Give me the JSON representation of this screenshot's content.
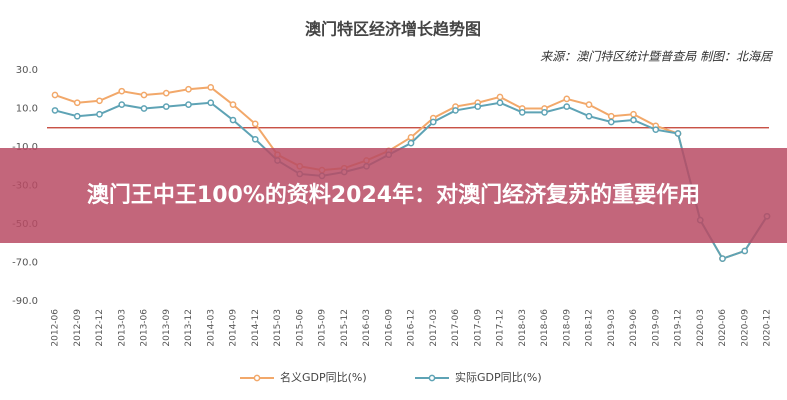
{
  "chart_data": {
    "type": "line",
    "title": "澳门特区经济增长趋势图",
    "subtitle": "来源：澳门特区统计暨普查局 制图：北海居",
    "categories": [
      "2012-06",
      "2012-09",
      "2012-12",
      "2013-03",
      "2013-06",
      "2013-09",
      "2013-12",
      "2014-03",
      "2014-09",
      "2014-12",
      "2015-03",
      "2015-06",
      "2015-09",
      "2015-12",
      "2016-03",
      "2016-09",
      "2016-12",
      "2017-03",
      "2017-06",
      "2017-09",
      "2017-12",
      "2018-03",
      "2018-06",
      "2018-09",
      "2018-12",
      "2019-03",
      "2019-06",
      "2019-09",
      "2019-12",
      "2020-03",
      "2020-06",
      "2020-09",
      "2020-12"
    ],
    "series": [
      {
        "name": "名义GDP同比(%)",
        "color": "#f2a86a",
        "values": [
          17,
          13,
          14,
          19,
          17,
          18,
          20,
          21,
          12,
          2,
          -14,
          -20,
          -22,
          -21,
          -17,
          -12,
          -5,
          5,
          11,
          13,
          16,
          10,
          10,
          15,
          12,
          6,
          7,
          1,
          -3,
          -48,
          -68,
          -64,
          -46
        ]
      },
      {
        "name": "实际GDP同比(%)",
        "color": "#5ea3b5",
        "values": [
          9,
          6,
          7,
          12,
          10,
          11,
          12,
          13,
          4,
          -6,
          -17,
          -24,
          -25,
          -23,
          -20,
          -14,
          -8,
          3,
          9,
          11,
          13,
          8,
          8,
          11,
          6,
          3,
          4,
          -1,
          -3,
          -48,
          -68,
          -64,
          -46
        ]
      }
    ],
    "ylim": [
      -90,
      30
    ],
    "yticks": [
      {
        "value": 30,
        "label": "30.0"
      },
      {
        "value": 10,
        "label": "10.0"
      },
      {
        "value": -10,
        "label": "-10.0"
      },
      {
        "value": -30,
        "label": "-30.0"
      },
      {
        "value": -50,
        "label": "-50.0"
      },
      {
        "value": -70,
        "label": "-70.0"
      },
      {
        "value": -90,
        "label": "-90.0"
      }
    ],
    "reference_line": 0,
    "reference_color": "#c0392b"
  },
  "banner": "澳门王中王100%的资料2024年：对澳门经济复苏的重要作用"
}
